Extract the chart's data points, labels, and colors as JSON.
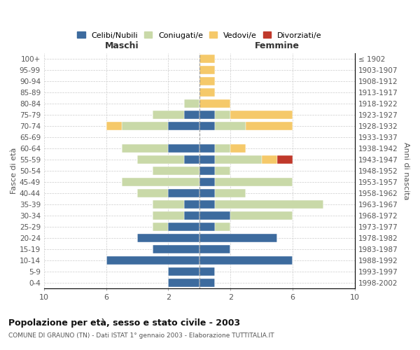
{
  "age_groups": [
    "0-4",
    "5-9",
    "10-14",
    "15-19",
    "20-24",
    "25-29",
    "30-34",
    "35-39",
    "40-44",
    "45-49",
    "50-54",
    "55-59",
    "60-64",
    "65-69",
    "70-74",
    "75-79",
    "80-84",
    "85-89",
    "90-94",
    "95-99",
    "100+"
  ],
  "birth_years": [
    "1998-2002",
    "1993-1997",
    "1988-1992",
    "1983-1987",
    "1978-1982",
    "1973-1977",
    "1968-1972",
    "1963-1967",
    "1958-1962",
    "1953-1957",
    "1948-1952",
    "1943-1947",
    "1938-1942",
    "1933-1937",
    "1928-1932",
    "1923-1927",
    "1918-1922",
    "1913-1917",
    "1908-1912",
    "1903-1907",
    "≤ 1902"
  ],
  "males": {
    "celibi": [
      2,
      2,
      6,
      3,
      4,
      2,
      1,
      1,
      2,
      0,
      0,
      1,
      2,
      0,
      2,
      1,
      0,
      0,
      0,
      0,
      0
    ],
    "coniugati": [
      0,
      0,
      0,
      0,
      0,
      1,
      2,
      2,
      2,
      5,
      3,
      3,
      3,
      0,
      3,
      2,
      1,
      0,
      0,
      0,
      0
    ],
    "vedovi": [
      0,
      0,
      0,
      0,
      0,
      0,
      0,
      0,
      0,
      0,
      0,
      0,
      0,
      0,
      1,
      0,
      0,
      0,
      0,
      0,
      0
    ],
    "divorziati": [
      0,
      0,
      0,
      0,
      0,
      0,
      0,
      0,
      0,
      0,
      0,
      0,
      0,
      0,
      0,
      0,
      0,
      0,
      0,
      0,
      0
    ]
  },
  "females": {
    "nubili": [
      1,
      1,
      6,
      2,
      5,
      1,
      2,
      1,
      1,
      1,
      1,
      1,
      1,
      0,
      1,
      1,
      0,
      0,
      0,
      0,
      0
    ],
    "coniugate": [
      0,
      0,
      0,
      0,
      0,
      1,
      4,
      7,
      2,
      5,
      1,
      3,
      1,
      0,
      2,
      1,
      0,
      0,
      0,
      0,
      0
    ],
    "vedove": [
      0,
      0,
      0,
      0,
      0,
      0,
      0,
      0,
      0,
      0,
      0,
      1,
      1,
      0,
      3,
      4,
      2,
      1,
      1,
      1,
      1
    ],
    "divorziate": [
      0,
      0,
      0,
      0,
      0,
      0,
      0,
      0,
      0,
      0,
      0,
      1,
      0,
      0,
      0,
      0,
      0,
      0,
      0,
      0,
      0
    ]
  },
  "colors": {
    "celibi_nubili": "#3d6b9e",
    "coniugati": "#c9d9a8",
    "vedovi": "#f5c96a",
    "divorziati": "#c0392b"
  },
  "title": "Popolazione per età, sesso e stato civile - 2003",
  "subtitle": "COMUNE DI GRAUNO (TN) - Dati ISTAT 1° gennaio 2003 - Elaborazione TUTTITALIA.IT",
  "ylabel_left": "Fasce di età",
  "ylabel_right": "Anni di nascita",
  "header_left": "Maschi",
  "header_right": "Femmine",
  "legend_labels": [
    "Celibi/Nubili",
    "Coniugati/e",
    "Vedovi/e",
    "Divorziati/e"
  ]
}
